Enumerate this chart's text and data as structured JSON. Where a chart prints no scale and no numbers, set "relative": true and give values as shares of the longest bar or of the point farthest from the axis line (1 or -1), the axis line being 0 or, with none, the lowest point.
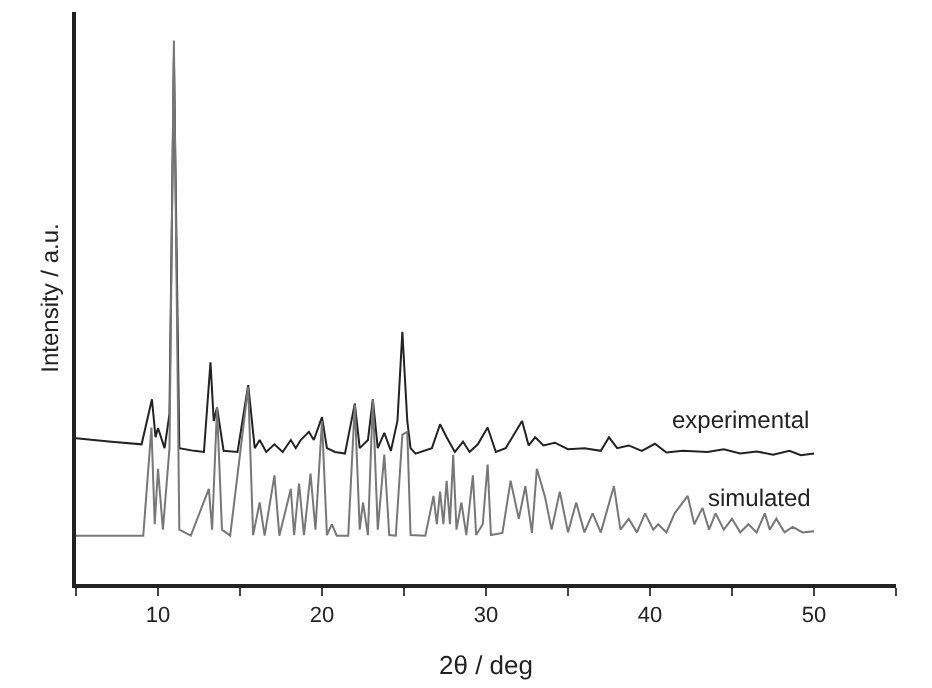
{
  "chart_data": {
    "type": "line",
    "relative": true,
    "xlabel": "2θ / deg",
    "ylabel": "Intensity / a.u.",
    "xlim": [
      5,
      55
    ],
    "xticks": [
      {
        "value": 5,
        "label": null
      },
      10,
      {
        "value": 15,
        "label": null
      },
      20,
      {
        "value": 25,
        "label": null
      },
      30,
      {
        "value": 35,
        "label": null
      },
      40,
      {
        "value": 45,
        "label": null
      },
      50,
      {
        "value": 55,
        "label": null
      }
    ],
    "legend": false,
    "marker": "none",
    "line_style": "solid",
    "series": [
      {
        "name": "experimental",
        "color": "#222222",
        "x": [
          5,
          7,
          9,
          9.63,
          9.85,
          10.0,
          10.4,
          10.7,
          10.97,
          11.3,
          12.2,
          12.8,
          13.2,
          13.4,
          13.6,
          14.0,
          14.85,
          15.5,
          15.9,
          16.2,
          16.6,
          17.1,
          17.6,
          18.1,
          18.4,
          18.7,
          19.2,
          19.5,
          20.0,
          20.3,
          20.8,
          21.4,
          22.0,
          22.3,
          22.8,
          23.1,
          23.4,
          23.8,
          24.2,
          24.6,
          24.9,
          25.2,
          25.4,
          25.7,
          26.7,
          27.2,
          27.6,
          28.1,
          28.6,
          29.0,
          29.5,
          30.1,
          30.6,
          31.2,
          32.2,
          32.6,
          33.0,
          33.5,
          34.2,
          35.0,
          36.0,
          37.0,
          37.5,
          38.0,
          38.7,
          39.5,
          40.3,
          41.0,
          42.0,
          43.5,
          44.5,
          45.5,
          46.5,
          47.5,
          48.5,
          49.2,
          50.0
        ],
        "values": [
          0.268,
          0.262,
          0.257,
          0.34,
          0.27,
          0.287,
          0.25,
          0.313,
          0.97,
          0.25,
          0.245,
          0.243,
          0.408,
          0.3,
          0.325,
          0.245,
          0.243,
          0.366,
          0.25,
          0.265,
          0.243,
          0.257,
          0.243,
          0.265,
          0.25,
          0.265,
          0.28,
          0.265,
          0.307,
          0.25,
          0.243,
          0.24,
          0.332,
          0.25,
          0.265,
          0.34,
          0.25,
          0.278,
          0.245,
          0.3,
          0.464,
          0.3,
          0.25,
          0.24,
          0.25,
          0.294,
          0.27,
          0.243,
          0.262,
          0.243,
          0.257,
          0.288,
          0.243,
          0.25,
          0.3,
          0.255,
          0.27,
          0.255,
          0.26,
          0.248,
          0.25,
          0.245,
          0.27,
          0.25,
          0.255,
          0.245,
          0.258,
          0.242,
          0.245,
          0.243,
          0.248,
          0.24,
          0.244,
          0.238,
          0.245,
          0.237,
          0.24
        ]
      },
      {
        "name": "simulated",
        "color": "#777777",
        "x": [
          5,
          9.1,
          9.6,
          9.8,
          10.0,
          10.3,
          10.7,
          10.97,
          11.3,
          12.0,
          13.1,
          13.3,
          13.6,
          13.9,
          14.4,
          15.5,
          15.8,
          16.2,
          16.5,
          17.1,
          17.4,
          18.1,
          18.3,
          18.6,
          18.9,
          19.3,
          19.6,
          20.0,
          20.3,
          20.6,
          20.9,
          21.6,
          22.0,
          22.3,
          22.5,
          22.8,
          23.1,
          23.4,
          23.8,
          24.1,
          24.5,
          24.9,
          25.2,
          25.4,
          26.3,
          26.8,
          27.0,
          27.2,
          27.4,
          27.6,
          27.8,
          28.0,
          28.2,
          28.5,
          28.8,
          29.2,
          29.4,
          29.8,
          30.1,
          30.3,
          31.0,
          31.5,
          32.0,
          32.4,
          32.8,
          33.1,
          33.6,
          34.0,
          34.5,
          35.0,
          35.5,
          36.0,
          36.5,
          37.0,
          37.8,
          38.2,
          38.7,
          39.2,
          39.7,
          40.2,
          40.5,
          41.0,
          41.5,
          42.3,
          42.7,
          43.2,
          43.6,
          44.0,
          44.5,
          45.0,
          45.5,
          46.0,
          46.5,
          47.0,
          47.3,
          47.7,
          48.2,
          48.7,
          49.3,
          50.0
        ],
        "values": [
          0.089,
          0.089,
          0.288,
          0.11,
          0.212,
          0.1,
          0.25,
          1.0,
          0.1,
          0.089,
          0.175,
          0.1,
          0.325,
          0.1,
          0.089,
          0.363,
          0.09,
          0.15,
          0.089,
          0.2,
          0.089,
          0.175,
          0.09,
          0.185,
          0.09,
          0.203,
          0.1,
          0.3,
          0.09,
          0.11,
          0.089,
          0.089,
          0.33,
          0.1,
          0.15,
          0.09,
          0.34,
          0.1,
          0.238,
          0.09,
          0.089,
          0.275,
          0.28,
          0.09,
          0.089,
          0.162,
          0.11,
          0.17,
          0.11,
          0.19,
          0.11,
          0.238,
          0.1,
          0.15,
          0.09,
          0.2,
          0.09,
          0.11,
          0.22,
          0.09,
          0.094,
          0.19,
          0.12,
          0.18,
          0.094,
          0.212,
          0.16,
          0.1,
          0.17,
          0.095,
          0.15,
          0.095,
          0.13,
          0.095,
          0.18,
          0.1,
          0.12,
          0.095,
          0.13,
          0.1,
          0.11,
          0.095,
          0.13,
          0.162,
          0.11,
          0.14,
          0.1,
          0.13,
          0.1,
          0.12,
          0.095,
          0.11,
          0.095,
          0.13,
          0.1,
          0.12,
          0.095,
          0.105,
          0.095,
          0.097
        ]
      }
    ]
  }
}
